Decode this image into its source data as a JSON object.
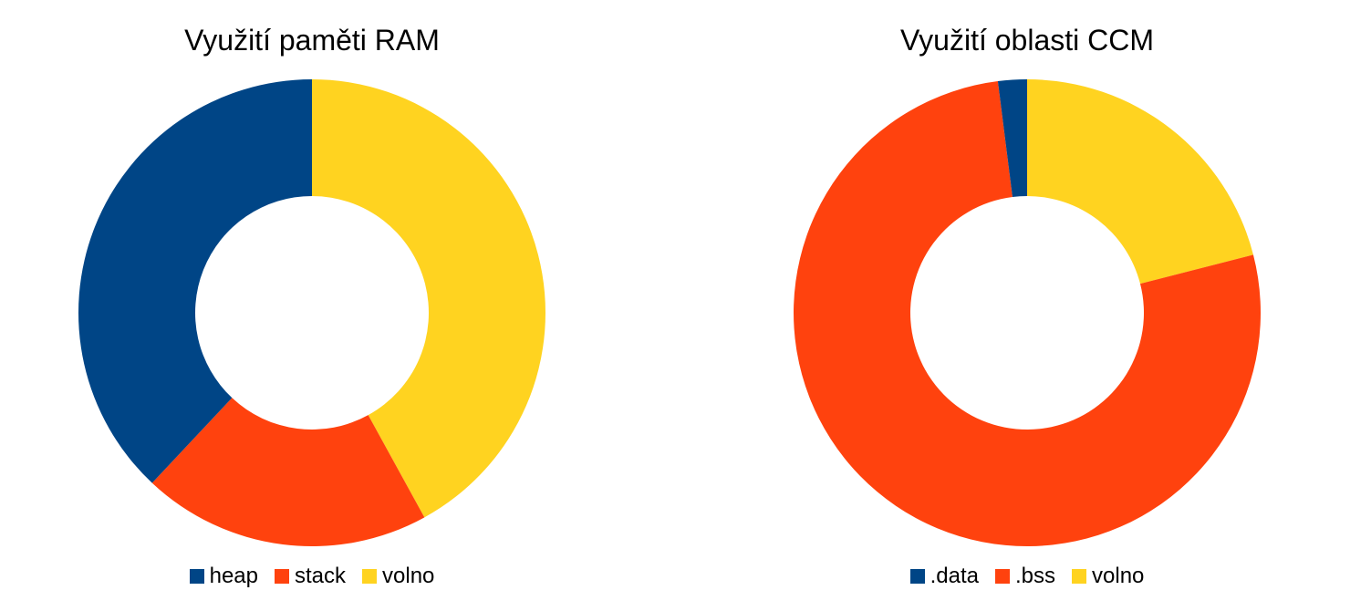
{
  "chart_data": [
    {
      "type": "pie",
      "variant": "donut",
      "title": "Využití paměti RAM",
      "categories": [
        "heap",
        "stack",
        "volno"
      ],
      "values": [
        38,
        20,
        42
      ],
      "colors": [
        "#004586",
        "#ff420e",
        "#ffd320"
      ],
      "legend_position": "bottom"
    },
    {
      "type": "pie",
      "variant": "donut",
      "title": "Využití oblasti CCM",
      "categories": [
        ".data",
        ".bss",
        "volno"
      ],
      "values": [
        2,
        77,
        21
      ],
      "colors": [
        "#004586",
        "#ff420e",
        "#ffd320"
      ],
      "legend_position": "bottom"
    }
  ]
}
